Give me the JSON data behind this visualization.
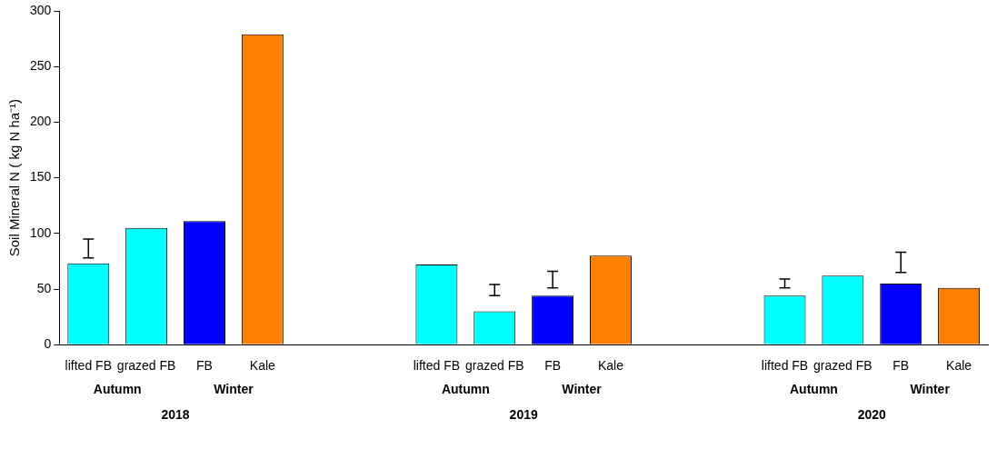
{
  "chart_data": {
    "type": "bar",
    "ylabel": "Soil Mineral N ( kg N ha⁻¹)",
    "categories": [
      "lifted FB",
      "grazed FB",
      "FB",
      "Kale",
      null,
      null,
      "lifted FB",
      "grazed FB",
      "FB",
      "Kale",
      null,
      null,
      "lifted FB",
      "grazed FB",
      "FB",
      "Kale"
    ],
    "values": [
      73,
      105,
      111,
      279,
      null,
      null,
      72,
      30,
      44,
      80,
      null,
      null,
      44,
      62,
      55,
      51
    ],
    "colors": [
      "#00ffff",
      "#00ffff",
      "#0000ff",
      "#ff8000",
      null,
      null,
      "#00ffff",
      "#00ffff",
      "#0000ff",
      "#ff8000",
      null,
      null,
      "#00ffff",
      "#00ffff",
      "#0000ff",
      "#ff8000"
    ],
    "errors": [
      [
        78,
        95
      ],
      null,
      null,
      null,
      null,
      null,
      null,
      [
        44,
        54
      ],
      [
        51,
        66
      ],
      null,
      null,
      null,
      [
        51,
        59
      ],
      null,
      [
        65,
        83
      ],
      null
    ],
    "ylim": [
      0,
      300
    ],
    "yticks": [
      0,
      50,
      100,
      150,
      200,
      250,
      300
    ],
    "annotations": [
      "Autumn",
      "Winter",
      "2018",
      "Autumn",
      "Winter",
      "2019",
      "Autumn",
      "Winter",
      "2020"
    ]
  }
}
